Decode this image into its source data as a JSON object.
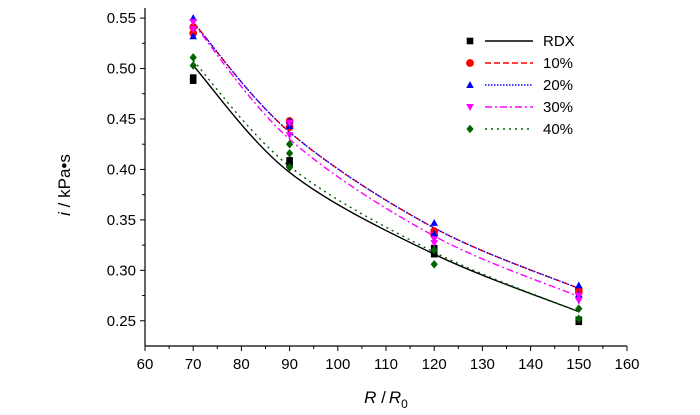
{
  "chart_data": {
    "type": "scatter",
    "xlabel": {
      "symbol": "R",
      "sep": " /",
      "symbol2": "R",
      "sub": "0"
    },
    "ylabel": {
      "symbol": "i",
      "unit": " / kPa•s"
    },
    "xlim": [
      60,
      160
    ],
    "ylim": [
      0.225,
      0.56
    ],
    "xticks": [
      "60",
      "70",
      "80",
      "90",
      "100",
      "110",
      "120",
      "130",
      "140",
      "150",
      "160"
    ],
    "yticks": [
      "0.25",
      "0.30",
      "0.35",
      "0.40",
      "0.45",
      "0.50",
      "0.55"
    ],
    "legend_position": "top-right",
    "series": [
      {
        "name": "RDX",
        "color": "#000000",
        "marker": "square",
        "line": "solid",
        "points": [
          [
            70,
            0.488
          ],
          [
            70,
            0.491
          ],
          [
            90,
            0.405
          ],
          [
            90,
            0.409
          ],
          [
            120,
            0.316
          ],
          [
            120,
            0.322
          ],
          [
            150,
            0.249
          ],
          [
            150,
            0.251
          ]
        ],
        "fit": [
          [
            70,
            0.503
          ],
          [
            90,
            0.397
          ],
          [
            120,
            0.316
          ],
          [
            150,
            0.259
          ]
        ]
      },
      {
        "name": "10%",
        "color": "#ff0000",
        "marker": "circle",
        "line": "dashed",
        "points": [
          [
            70,
            0.535
          ],
          [
            70,
            0.541
          ],
          [
            90,
            0.442
          ],
          [
            90,
            0.448
          ],
          [
            120,
            0.335
          ],
          [
            120,
            0.339
          ],
          [
            150,
            0.278
          ],
          [
            150,
            0.281
          ]
        ],
        "fit": [
          [
            70,
            0.546
          ],
          [
            90,
            0.437
          ],
          [
            120,
            0.342
          ],
          [
            150,
            0.282
          ]
        ]
      },
      {
        "name": "20%",
        "color": "#0000ff",
        "marker": "triangle-up",
        "line": "dotted",
        "points": [
          [
            70,
            0.55
          ],
          [
            70,
            0.532
          ],
          [
            90,
            0.448
          ],
          [
            90,
            0.443
          ],
          [
            120,
            0.347
          ],
          [
            120,
            0.336
          ],
          [
            150,
            0.285
          ],
          [
            150,
            0.276
          ]
        ],
        "fit": [
          [
            70,
            0.546
          ],
          [
            90,
            0.437
          ],
          [
            120,
            0.342
          ],
          [
            150,
            0.282
          ]
        ]
      },
      {
        "name": "30%",
        "color": "#ff00ff",
        "marker": "triangle-down",
        "line": "dashdot",
        "points": [
          [
            70,
            0.546
          ],
          [
            70,
            0.539
          ],
          [
            90,
            0.446
          ],
          [
            90,
            0.434
          ],
          [
            120,
            0.331
          ],
          [
            120,
            0.327
          ],
          [
            150,
            0.275
          ],
          [
            150,
            0.27
          ]
        ],
        "fit": [
          [
            70,
            0.545
          ],
          [
            90,
            0.43
          ],
          [
            120,
            0.334
          ],
          [
            150,
            0.274
          ]
        ]
      },
      {
        "name": "40%",
        "color": "#006400",
        "marker": "diamond",
        "line": "dotted-sparse",
        "points": [
          [
            70,
            0.511
          ],
          [
            70,
            0.503
          ],
          [
            90,
            0.425
          ],
          [
            90,
            0.416
          ],
          [
            90,
            0.402
          ],
          [
            120,
            0.32
          ],
          [
            120,
            0.306
          ],
          [
            150,
            0.262
          ],
          [
            150,
            0.252
          ]
        ],
        "fit": [
          [
            70,
            0.508
          ],
          [
            90,
            0.403
          ],
          [
            120,
            0.318
          ],
          [
            150,
            0.259
          ]
        ]
      }
    ]
  }
}
